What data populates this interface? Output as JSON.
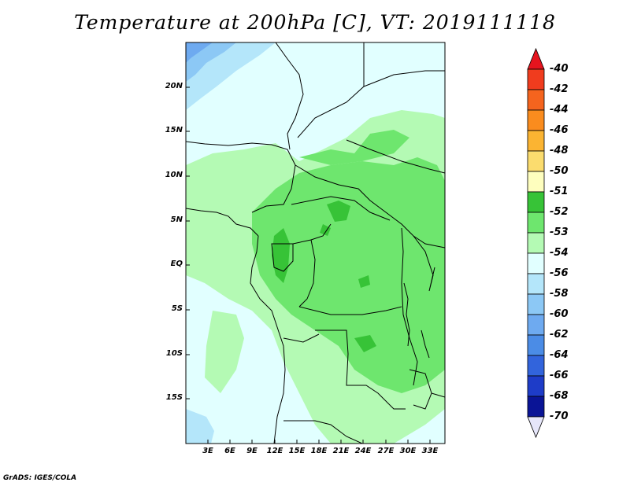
{
  "title": "Temperature at 200hPa [C], VT: 2019111118",
  "credit": "GrADS: IGES/COLA",
  "map": {
    "lat_labels": [
      "20N",
      "15N",
      "10N",
      "5N",
      "EQ",
      "5S",
      "10S",
      "15S"
    ],
    "lon_labels": [
      "3E",
      "6E",
      "9E",
      "12E",
      "15E",
      "18E",
      "21E",
      "24E",
      "27E",
      "30E",
      "33E"
    ]
  },
  "colorbar": {
    "labels": [
      "-40",
      "-42",
      "-44",
      "-46",
      "-48",
      "-50",
      "-51",
      "-52",
      "-53",
      "-54",
      "-56",
      "-58",
      "-60",
      "-62",
      "-64",
      "-66",
      "-68",
      "-70"
    ],
    "colors": [
      "#e6141e",
      "#f03c1e",
      "#f5641e",
      "#fa8c1e",
      "#fbb432",
      "#fbdc6e",
      "#fefebe",
      "#37c337",
      "#6ee66e",
      "#b4fab4",
      "#e1ffff",
      "#b4e6fa",
      "#8cc8f5",
      "#6eaaf0",
      "#4b8ce6",
      "#3264dc",
      "#1e3cc8",
      "#0a1496",
      "#e6e6fa"
    ]
  },
  "palette": {
    "pale_cyan": "#e1ffff",
    "light_green": "#b4fab4",
    "green": "#6ee66e",
    "dark_green": "#37c337",
    "light_blue": "#b4e6fa",
    "blue": "#8cc8f5",
    "mid_blue": "#6eaaf0"
  }
}
